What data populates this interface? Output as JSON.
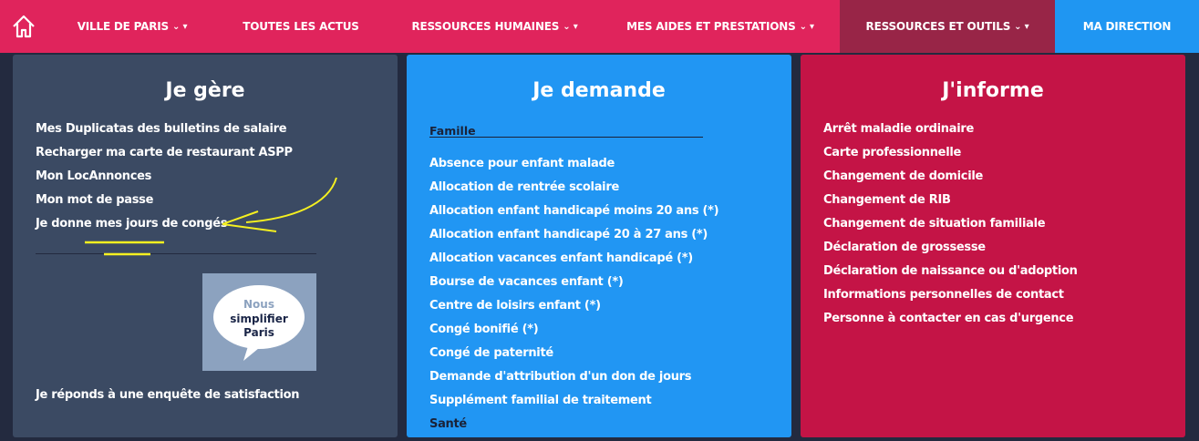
{
  "nav": {
    "items": [
      {
        "label": "VILLE DE PARIS",
        "dropdown": true
      },
      {
        "label": "TOUTES LES ACTUS",
        "dropdown": false
      },
      {
        "label": "RESSOURCES HUMAINES",
        "dropdown": true
      },
      {
        "label": "MES AIDES ET PRESTATIONS",
        "dropdown": true
      },
      {
        "label": "RESSOURCES ET OUTILS",
        "dropdown": true,
        "active": true
      },
      {
        "label": "MA DIRECTION",
        "dropdown": false
      }
    ],
    "caret": "⌄ ▾"
  },
  "col1": {
    "title": "Je gère",
    "links": [
      "Mes Duplicatas des bulletins de salaire",
      "Recharger ma carte de restaurant ASPP",
      "Mon LocAnnonces",
      "Mon mot de passe",
      "Je donne mes jours de congés"
    ],
    "logo_text": [
      "Nous",
      "simplifier",
      "Paris"
    ],
    "survey": "Je réponds à une enquête de satisfaction"
  },
  "col2": {
    "title": "Je demande",
    "section": "Famille",
    "links": [
      "Absence pour enfant malade",
      "Allocation de rentrée scolaire",
      "Allocation enfant handicapé moins 20 ans (*)",
      "Allocation enfant handicapé 20 à 27 ans (*)",
      "Allocation vacances enfant handicapé (*)",
      "Bourse de vacances enfant (*)",
      "Centre de loisirs enfant (*)",
      "Congé bonifié (*)",
      "Congé de paternité",
      "Demande d'attribution d'un don de jours",
      "Supplément familial de traitement"
    ],
    "next_section": "Santé"
  },
  "col3": {
    "title": "J'informe",
    "links": [
      "Arrêt maladie ordinaire",
      "Carte professionnelle",
      "Changement de domicile",
      "Changement de RIB",
      "Changement de situation familiale",
      "Déclaration de grossesse",
      "Déclaration de naissance ou d'adoption",
      "Informations personnelles de contact",
      "Personne à contacter en cas d'urgence"
    ]
  },
  "colors": {
    "nav": "#e0245c",
    "nav_active": "#982547",
    "nav_blue": "#1f96f2",
    "col1": "#3b4a63",
    "col2": "#2196f3",
    "col3": "#c41446",
    "annotation": "#f5f020"
  }
}
